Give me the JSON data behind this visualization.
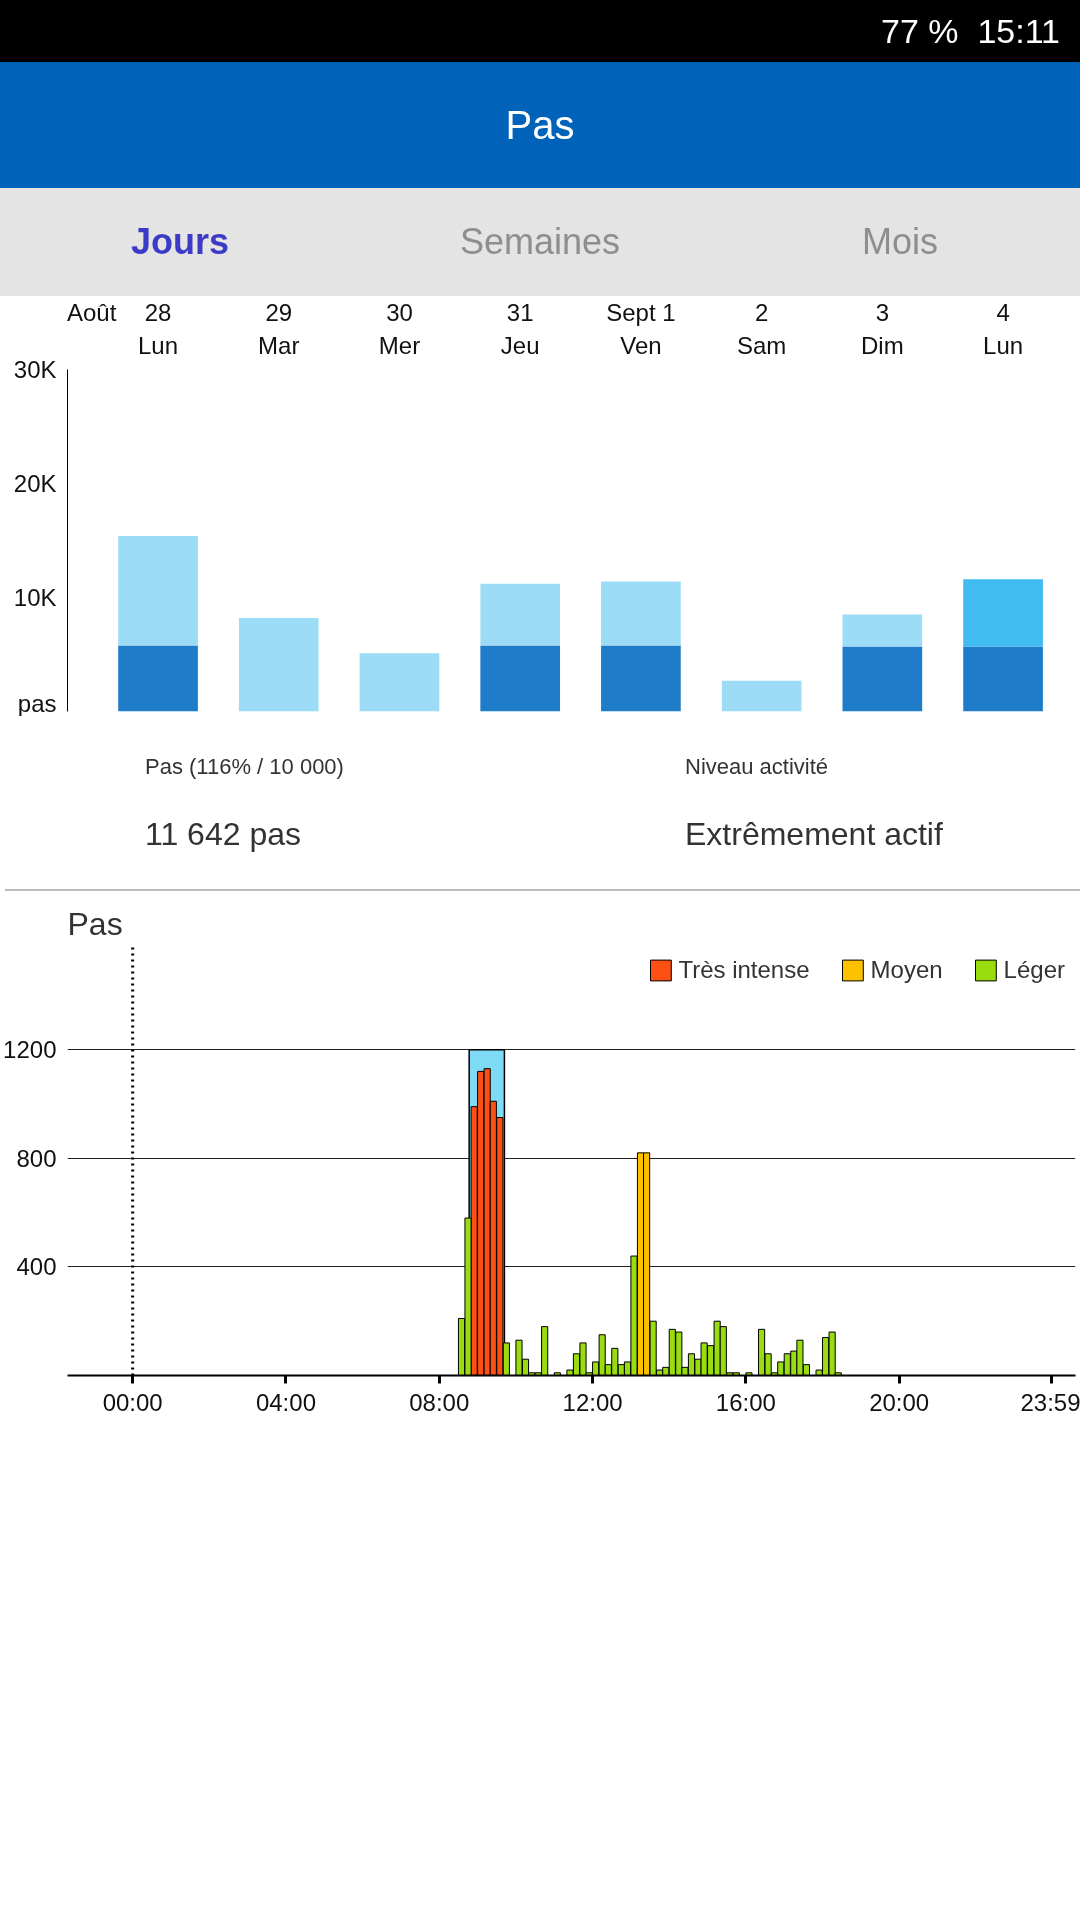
{
  "chart_data": [
    {
      "type": "other",
      "title": "Pas",
      "annotations": [
        "77 %",
        "15:11",
        "Jours",
        "Semaines",
        "Mois"
      ]
    },
    {
      "type": "bar",
      "stacked": true,
      "categories": [
        "28\nLun",
        "29\nMar",
        "30\nMer",
        "31\nJeu",
        "Sept 1\nVen",
        "2\nSam",
        "3\nDim",
        "4\nLun"
      ],
      "series": [
        {
          "color": "#1e7cc8",
          "values": [
            5800,
            null,
            null,
            5800,
            5800,
            null,
            5700,
            5700
          ]
        },
        {
          "colors": [
            "#9ddcf7",
            "#9ddcf7",
            "#9ddcf7",
            "#9ddcf7",
            "#9ddcf7",
            "#9ddcf7",
            "#9ddcf7",
            "#40bcf0"
          ],
          "values": [
            9600,
            8200,
            5100,
            5400,
            5600,
            2700,
            2800,
            5900
          ]
        }
      ],
      "ylim": [
        0,
        30000
      ],
      "yticks": [
        {
          "value": 0,
          "label": "pas"
        },
        {
          "value": 10000,
          "label": "10K"
        },
        {
          "value": 20000,
          "label": "20K"
        },
        {
          "value": 30000,
          "label": "30K"
        }
      ],
      "annotations": [
        "Août"
      ]
    },
    {
      "type": "other",
      "annotations": [
        "Pas (116% / 10 000)",
        "11 642 pas",
        "Niveau activité",
        "Extrêmement actif"
      ]
    },
    {
      "type": "bar",
      "title": "Pas",
      "legend": "top right",
      "grid": "y",
      "series": [
        {
          "name": "Très intense",
          "color": "#ff5014",
          "x": [
            8.83,
            9,
            9.17,
            9.33,
            9.5
          ],
          "values": [
            990,
            1120,
            1130,
            1010,
            950
          ]
        },
        {
          "name": "Moyen",
          "color": "#fcc200",
          "x": [
            13.17,
            13.33
          ],
          "values": [
            820,
            820
          ]
        },
        {
          "name": "Léger",
          "color": "#99dd11",
          "x": [
            8.5,
            8.67,
            9.67,
            10,
            10.17,
            10.33,
            10.5,
            10.67,
            11,
            11.33,
            11.5,
            11.67,
            11.83,
            12,
            12.17,
            12.33,
            12.5,
            12.67,
            12.83,
            13,
            13.5,
            13.67,
            13.83,
            14,
            14.17,
            14.33,
            14.5,
            14.67,
            14.83,
            15,
            15.17,
            15.33,
            15.5,
            15.67,
            16,
            16.33,
            16.5,
            16.67,
            16.83,
            17,
            17.17,
            17.33,
            17.5,
            17.83,
            18,
            18.17,
            18.33
          ],
          "values": [
            210,
            580,
            120,
            130,
            60,
            10,
            10,
            180,
            10,
            20,
            80,
            120,
            10,
            50,
            150,
            40,
            100,
            40,
            50,
            440,
            200,
            20,
            30,
            170,
            160,
            30,
            80,
            60,
            120,
            110,
            200,
            180,
            10,
            10,
            10,
            170,
            80,
            10,
            50,
            80,
            90,
            130,
            40,
            20,
            140,
            160,
            10
          ]
        }
      ],
      "bands": [
        {
          "axis": "x",
          "from": 8.78,
          "to": 9.7,
          "color": "#7fdaf5"
        }
      ],
      "ref_lines": [
        {
          "axis": "x",
          "value": 0,
          "line_style": "dotted"
        }
      ],
      "xlim": [
        -1.7,
        24.6
      ],
      "ylim": [
        0,
        1580
      ],
      "xticks": [
        {
          "value": 0,
          "label": "00:00"
        },
        {
          "value": 4,
          "label": "04:00"
        },
        {
          "value": 8,
          "label": "08:00"
        },
        {
          "value": 12,
          "label": "12:00"
        },
        {
          "value": 16,
          "label": "16:00"
        },
        {
          "value": 20,
          "label": "20:00"
        },
        {
          "value": 23.98,
          "label": "23:59"
        }
      ],
      "yticks": [
        400,
        800,
        1200
      ]
    }
  ]
}
